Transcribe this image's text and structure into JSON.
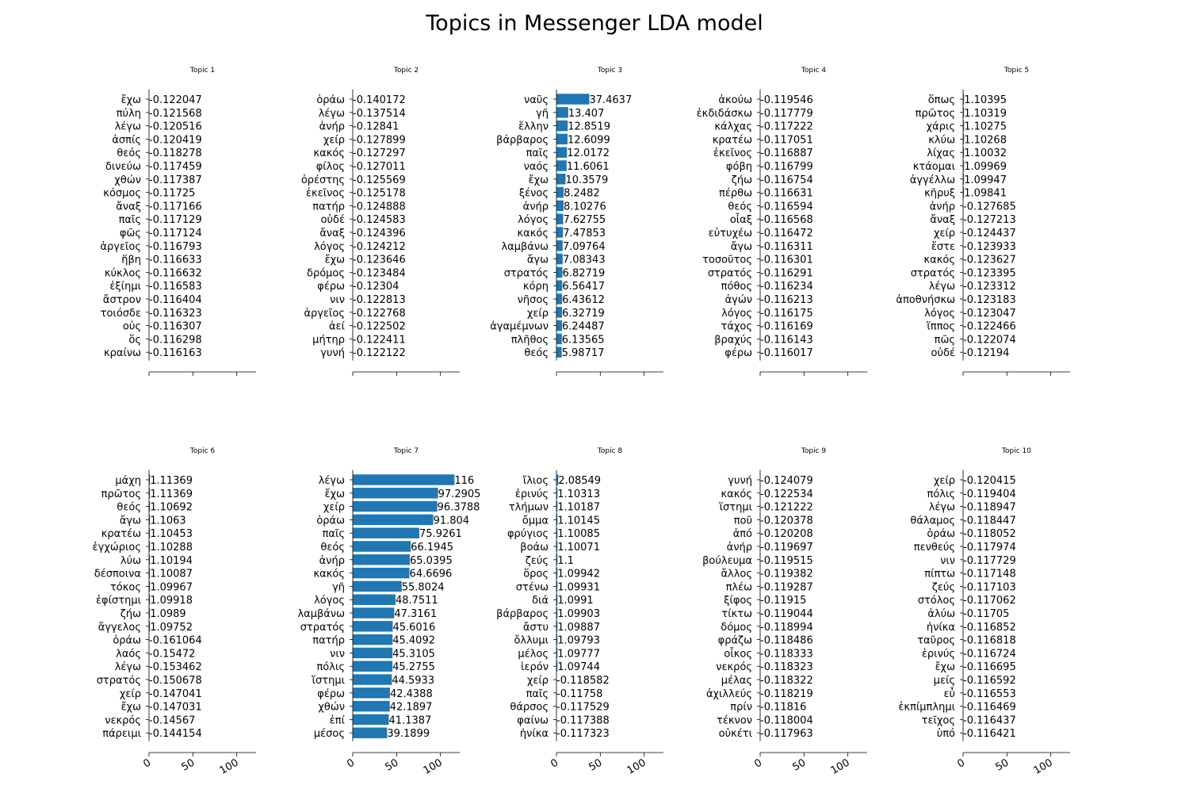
{
  "title": "Topics in Messenger LDA model",
  "colors": {
    "bar": "#1f77b4",
    "axis": "#000000"
  },
  "chart_data": [
    {
      "type": "bar",
      "orientation": "horizontal",
      "title": "Topic 1",
      "xlim": [
        0,
        122
      ],
      "xticks": [
        0,
        50,
        100
      ],
      "xtick_labels_shown": false,
      "categories": [
        "ἔχω",
        "πύλη",
        "λέγω",
        "ἀσπίς",
        "θεός",
        "δινεύω",
        "χθών",
        "κόσμος",
        "ἄναξ",
        "παῖς",
        "φῶς",
        "ἀργεῖος",
        "ἥβη",
        "κύκλος",
        "ἐξίημι",
        "ἄστρον",
        "τοιόσδε",
        "οὐς",
        "ὅς",
        "κραίνω"
      ],
      "values": [
        -0.122047,
        -0.121568,
        -0.120516,
        -0.120419,
        -0.118278,
        -0.117459,
        -0.117387,
        -0.11725,
        -0.117166,
        -0.117129,
        -0.117124,
        -0.116793,
        -0.116633,
        -0.116632,
        -0.116583,
        -0.116404,
        -0.116323,
        -0.116307,
        -0.116298,
        -0.116163
      ],
      "labels": [
        "-0.122047",
        "-0.121568",
        "-0.120516",
        "-0.120419",
        "-0.118278",
        "-0.117459",
        "-0.117387",
        "-0.11725",
        "-0.117166",
        "-0.117129",
        "-0.117124",
        "-0.116793",
        "-0.116633",
        "-0.116632",
        "-0.116583",
        "-0.116404",
        "-0.116323",
        "-0.116307",
        "-0.116298",
        "-0.116163"
      ]
    },
    {
      "type": "bar",
      "orientation": "horizontal",
      "title": "Topic 2",
      "xlim": [
        0,
        122
      ],
      "xticks": [
        0,
        50,
        100
      ],
      "xtick_labels_shown": false,
      "categories": [
        "ὁράω",
        "λέγω",
        "ἀνήρ",
        "χείρ",
        "κακός",
        "φίλος",
        "ὀρέστης",
        "ἐκεῖνος",
        "πατήρ",
        "οὐδέ",
        "ἄναξ",
        "λόγος",
        "ἔχω",
        "δρόμος",
        "φέρω",
        "νιν",
        "ἀργεῖος",
        "ἀεί",
        "μήτηρ",
        "γυνή"
      ],
      "values": [
        -0.140172,
        -0.137514,
        -0.12841,
        -0.127899,
        -0.127297,
        -0.127011,
        -0.125569,
        -0.125178,
        -0.124888,
        -0.124583,
        -0.124396,
        -0.124212,
        -0.123646,
        -0.123484,
        -0.12304,
        -0.122813,
        -0.122768,
        -0.122502,
        -0.122411,
        -0.122122
      ],
      "labels": [
        "-0.140172",
        "-0.137514",
        "-0.12841",
        "-0.127899",
        "-0.127297",
        "-0.127011",
        "-0.125569",
        "-0.125178",
        "-0.124888",
        "-0.124583",
        "-0.124396",
        "-0.124212",
        "-0.123646",
        "-0.123484",
        "-0.12304",
        "-0.122813",
        "-0.122768",
        "-0.122502",
        "-0.122411",
        "-0.122122"
      ]
    },
    {
      "type": "bar",
      "orientation": "horizontal",
      "title": "Topic 3",
      "xlim": [
        0,
        122
      ],
      "xticks": [
        0,
        50,
        100
      ],
      "xtick_labels_shown": false,
      "categories": [
        "ναῦς",
        "γῆ",
        "ἕλλην",
        "βάρβαρος",
        "παῖς",
        "ναός",
        "ἔχω",
        "ξένος",
        "ἀνήρ",
        "λόγος",
        "κακός",
        "λαμβάνω",
        "ἄγω",
        "στρατός",
        "κόρη",
        "νῆσος",
        "χείρ",
        "ἀγαμέμνων",
        "πλῆθος",
        "θεός"
      ],
      "values": [
        37.4637,
        13.407,
        12.8519,
        12.6099,
        12.0172,
        11.6061,
        10.3579,
        8.2482,
        8.10276,
        7.62755,
        7.47853,
        7.09764,
        7.08343,
        6.82719,
        6.56417,
        6.43612,
        6.32719,
        6.24487,
        6.13565,
        5.98717
      ],
      "labels": [
        "37.4637",
        "13.407",
        "12.8519",
        "12.6099",
        "12.0172",
        "11.6061",
        "10.3579",
        "8.2482",
        "8.10276",
        "7.62755",
        "7.47853",
        "7.09764",
        "7.08343",
        "6.82719",
        "6.56417",
        "6.43612",
        "6.32719",
        "6.24487",
        "6.13565",
        "5.98717"
      ]
    },
    {
      "type": "bar",
      "orientation": "horizontal",
      "title": "Topic 4",
      "xlim": [
        0,
        122
      ],
      "xticks": [
        0,
        50,
        100
      ],
      "xtick_labels_shown": false,
      "categories": [
        "ἀκούω",
        "ἐκδιδάσκω",
        "κάλχας",
        "κρατέω",
        "ἐκεῖνος",
        "φόβη",
        "ζήω",
        "πέρθω",
        "θεός",
        "οἶαξ",
        "εὐτυχέω",
        "ἄγω",
        "τοσοῦτος",
        "στρατός",
        "πόθος",
        "ἀγών",
        "λόγος",
        "τάχος",
        "βραχύς",
        "φέρω"
      ],
      "values": [
        -0.119546,
        -0.117779,
        -0.117222,
        -0.117051,
        -0.116887,
        -0.116799,
        -0.116754,
        -0.116631,
        -0.116594,
        -0.116568,
        -0.116472,
        -0.116311,
        -0.116301,
        -0.116291,
        -0.116234,
        -0.116213,
        -0.116175,
        -0.116169,
        -0.116143,
        -0.116017
      ],
      "labels": [
        "-0.119546",
        "-0.117779",
        "-0.117222",
        "-0.117051",
        "-0.116887",
        "-0.116799",
        "-0.116754",
        "-0.116631",
        "-0.116594",
        "-0.116568",
        "-0.116472",
        "-0.116311",
        "-0.116301",
        "-0.116291",
        "-0.116234",
        "-0.116213",
        "-0.116175",
        "-0.116169",
        "-0.116143",
        "-0.116017"
      ]
    },
    {
      "type": "bar",
      "orientation": "horizontal",
      "title": "Topic 5",
      "xlim": [
        0,
        122
      ],
      "xticks": [
        0,
        50,
        100
      ],
      "xtick_labels_shown": false,
      "categories": [
        "ὅπως",
        "πρῶτος",
        "χάρις",
        "κλύω",
        "λίχας",
        "κτάομαι",
        "ἀγγέλλω",
        "κῆρυξ",
        "ἀνήρ",
        "ἄναξ",
        "χείρ",
        "ἔστε",
        "κακός",
        "στρατός",
        "λέγω",
        "ἀποθνήσκω",
        "λόγος",
        "ἵππος",
        "πῶς",
        "οὐδέ"
      ],
      "values": [
        1.10395,
        1.10319,
        1.10275,
        1.10268,
        1.10032,
        1.09969,
        1.09947,
        1.09841,
        -0.127685,
        -0.127213,
        -0.124437,
        -0.123933,
        -0.123627,
        -0.123395,
        -0.123312,
        -0.123183,
        -0.123047,
        -0.122466,
        -0.122074,
        -0.12194
      ],
      "labels": [
        "1.10395",
        "1.10319",
        "1.10275",
        "1.10268",
        "1.10032",
        "1.09969",
        "1.09947",
        "1.09841",
        "-0.127685",
        "-0.127213",
        "-0.124437",
        "-0.123933",
        "-0.123627",
        "-0.123395",
        "-0.123312",
        "-0.123183",
        "-0.123047",
        "-0.122466",
        "-0.122074",
        "-0.12194"
      ]
    },
    {
      "type": "bar",
      "orientation": "horizontal",
      "title": "Topic 6",
      "xlim": [
        0,
        122
      ],
      "xticks": [
        0,
        50,
        100
      ],
      "xtick_labels_shown": true,
      "categories": [
        "μάχη",
        "πρῶτος",
        "θεός",
        "ἄγω",
        "κρατέω",
        "ἐγχώριος",
        "λύω",
        "δέσποινα",
        "τόκος",
        "ἐφίστημι",
        "ζήω",
        "ἄγγελος",
        "ὁράω",
        "λαός",
        "λέγω",
        "στρατός",
        "χείρ",
        "ἔχω",
        "νεκρός",
        "πάρειμι"
      ],
      "values": [
        1.11369,
        1.11369,
        1.10692,
        1.1063,
        1.10453,
        1.10288,
        1.10194,
        1.10087,
        1.09967,
        1.09918,
        1.0989,
        1.09752,
        -0.161064,
        -0.15472,
        -0.153462,
        -0.150678,
        -0.147041,
        -0.147031,
        -0.14567,
        -0.144154
      ],
      "labels": [
        "1.11369",
        "1.11369",
        "1.10692",
        "1.1063",
        "1.10453",
        "1.10288",
        "1.10194",
        "1.10087",
        "1.09967",
        "1.09918",
        "1.0989",
        "1.09752",
        "-0.161064",
        "-0.15472",
        "-0.153462",
        "-0.150678",
        "-0.147041",
        "-0.147031",
        "-0.14567",
        "-0.144154"
      ]
    },
    {
      "type": "bar",
      "orientation": "horizontal",
      "title": "Topic 7",
      "xlim": [
        0,
        122
      ],
      "xticks": [
        0,
        50,
        100
      ],
      "xtick_labels_shown": true,
      "categories": [
        "λέγω",
        "ἔχω",
        "χείρ",
        "ὁράω",
        "παῖς",
        "θεός",
        "ἀνήρ",
        "κακός",
        "γῆ",
        "λόγος",
        "λαμβάνω",
        "στρατός",
        "πατήρ",
        "νιν",
        "πόλις",
        "ἵστημι",
        "φέρω",
        "χθών",
        "ἐπί",
        "μέσος"
      ],
      "values": [
        116,
        97.2905,
        96.3788,
        91.804,
        75.9261,
        66.1945,
        65.0395,
        64.6696,
        55.8024,
        48.7511,
        47.3161,
        45.6016,
        45.4092,
        45.3105,
        45.2755,
        44.5933,
        42.4388,
        42.1897,
        41.1387,
        39.1899
      ],
      "labels": [
        "116",
        "97.2905",
        "96.3788",
        "91.804",
        "75.9261",
        "66.1945",
        "65.0395",
        "64.6696",
        "55.8024",
        "48.7511",
        "47.3161",
        "45.6016",
        "45.4092",
        "45.3105",
        "45.2755",
        "44.5933",
        "42.4388",
        "42.1897",
        "41.1387",
        "39.1899"
      ]
    },
    {
      "type": "bar",
      "orientation": "horizontal",
      "title": "Topic 8",
      "xlim": [
        0,
        122
      ],
      "xticks": [
        0,
        50,
        100
      ],
      "xtick_labels_shown": true,
      "categories": [
        "ἴλιος",
        "ἐρινύς",
        "τλήμων",
        "ὄμμα",
        "φρύγιος",
        "βοάω",
        "ζεύς",
        "ὅρος",
        "στένω",
        "διά",
        "βάρβαρος",
        "ἄστυ",
        "ὄλλυμι",
        "μέλος",
        "ἱερόν",
        "χείρ",
        "παῖς",
        "θάρσος",
        "φαίνω",
        "ἡνίκα"
      ],
      "values": [
        2.08549,
        1.10313,
        1.10187,
        1.10145,
        1.10085,
        1.10071,
        1.1,
        1.09942,
        1.09931,
        1.0991,
        1.09903,
        1.09887,
        1.09793,
        1.09777,
        1.09744,
        -0.118582,
        -0.11758,
        -0.117529,
        -0.117388,
        -0.117323
      ],
      "labels": [
        "2.08549",
        "1.10313",
        "1.10187",
        "1.10145",
        "1.10085",
        "1.10071",
        "1.1",
        "1.09942",
        "1.09931",
        "1.0991",
        "1.09903",
        "1.09887",
        "1.09793",
        "1.09777",
        "1.09744",
        "-0.118582",
        "-0.11758",
        "-0.117529",
        "-0.117388",
        "-0.117323"
      ]
    },
    {
      "type": "bar",
      "orientation": "horizontal",
      "title": "Topic 9",
      "xlim": [
        0,
        122
      ],
      "xticks": [
        0,
        50,
        100
      ],
      "xtick_labels_shown": true,
      "categories": [
        "γυνή",
        "κακός",
        "ἵστημι",
        "ποῦ",
        "ἀπό",
        "ἀνήρ",
        "βούλευμα",
        "ἄλλος",
        "πλέω",
        "ξίφος",
        "τίκτω",
        "δόμος",
        "φράζω",
        "οἶκος",
        "νεκρός",
        "μέλας",
        "ἀχιλλεύς",
        "πρίν",
        "τέκνον",
        "οὐκέτι"
      ],
      "values": [
        -0.124079,
        -0.122534,
        -0.121222,
        -0.120378,
        -0.120208,
        -0.119697,
        -0.119515,
        -0.119382,
        -0.119287,
        -0.11915,
        -0.119044,
        -0.118994,
        -0.118486,
        -0.118333,
        -0.118323,
        -0.118322,
        -0.118219,
        -0.11816,
        -0.118004,
        -0.117963
      ],
      "labels": [
        "-0.124079",
        "-0.122534",
        "-0.121222",
        "-0.120378",
        "-0.120208",
        "-0.119697",
        "-0.119515",
        "-0.119382",
        "-0.119287",
        "-0.11915",
        "-0.119044",
        "-0.118994",
        "-0.118486",
        "-0.118333",
        "-0.118323",
        "-0.118322",
        "-0.118219",
        "-0.11816",
        "-0.118004",
        "-0.117963"
      ]
    },
    {
      "type": "bar",
      "orientation": "horizontal",
      "title": "Topic 10",
      "xlim": [
        0,
        122
      ],
      "xticks": [
        0,
        50,
        100
      ],
      "xtick_labels_shown": true,
      "categories": [
        "χείρ",
        "πόλις",
        "λέγω",
        "θάλαμος",
        "ὁράω",
        "πενθεύς",
        "νιν",
        "πίπτω",
        "ζεύς",
        "στόλος",
        "ἀλύω",
        "ἡνίκα",
        "ταῦρος",
        "ἐρινύς",
        "ἔχω",
        "μείς",
        "εὖ",
        "ἐκπίμπλημι",
        "τεῖχος",
        "ὑπό"
      ],
      "values": [
        -0.120415,
        -0.119404,
        -0.118947,
        -0.118447,
        -0.118052,
        -0.117974,
        -0.117729,
        -0.117148,
        -0.117103,
        -0.117062,
        -0.11705,
        -0.116852,
        -0.116818,
        -0.116724,
        -0.116695,
        -0.116592,
        -0.116553,
        -0.116469,
        -0.116437,
        -0.116421
      ],
      "labels": [
        "-0.120415",
        "-0.119404",
        "-0.118947",
        "-0.118447",
        "-0.118052",
        "-0.117974",
        "-0.117729",
        "-0.117148",
        "-0.117103",
        "-0.117062",
        "-0.11705",
        "-0.116852",
        "-0.116818",
        "-0.116724",
        "-0.116695",
        "-0.116592",
        "-0.116553",
        "-0.116469",
        "-0.116437",
        "-0.116421"
      ]
    }
  ]
}
